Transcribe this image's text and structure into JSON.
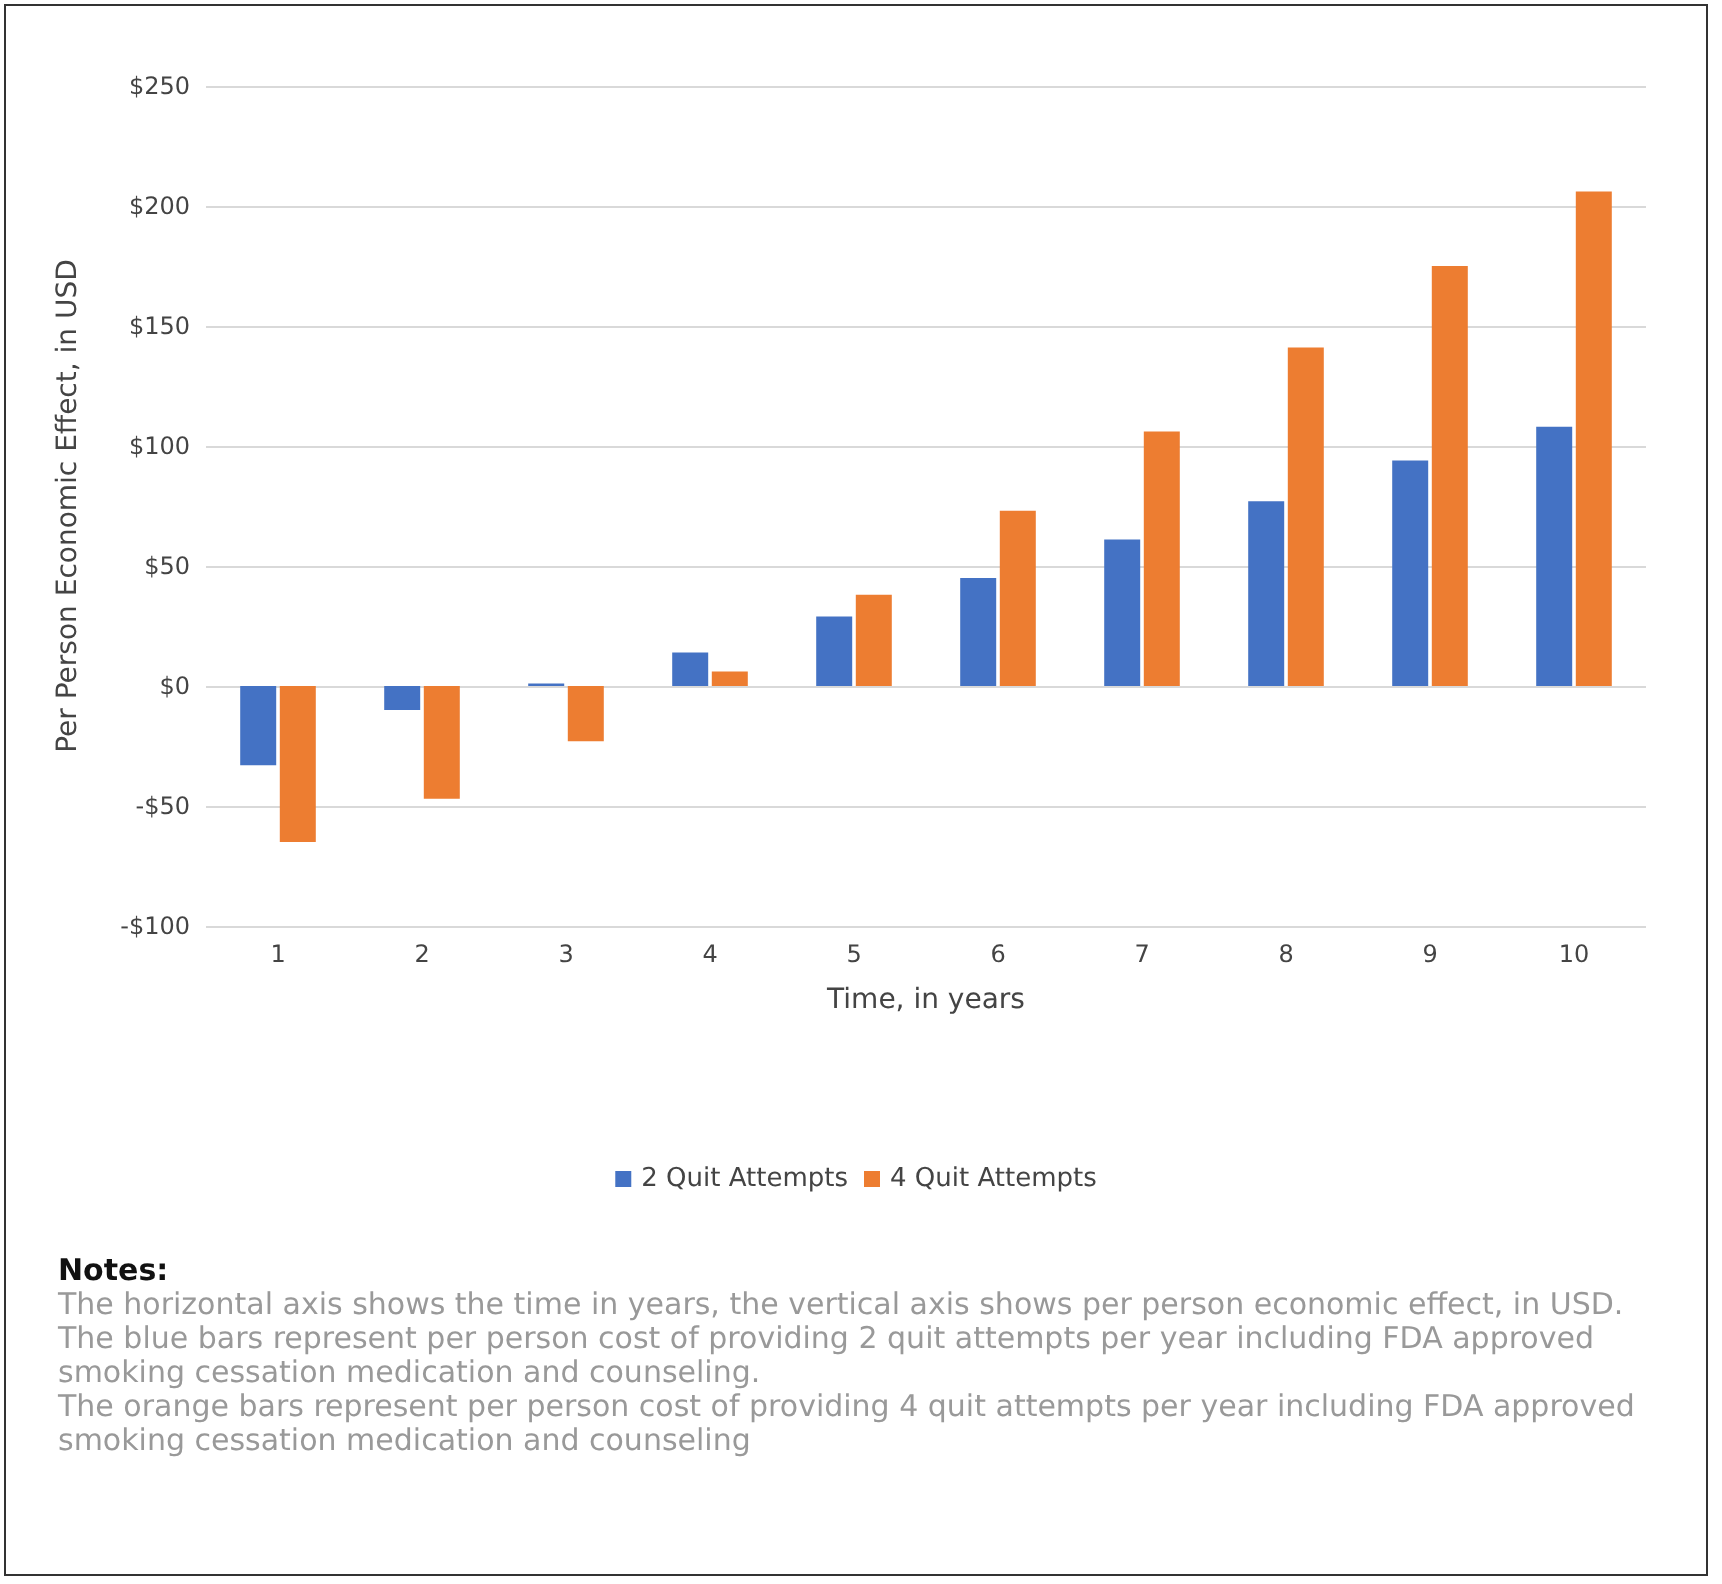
{
  "chart_data": {
    "type": "bar",
    "xlabel": "Time, in years",
    "ylabel": "Per Person Economic Effect, in USD",
    "categories": [
      "1",
      "2",
      "3",
      "4",
      "5",
      "6",
      "7",
      "8",
      "9",
      "10"
    ],
    "series": [
      {
        "name": "2 Quit Attempts",
        "color": "#4472c4",
        "values": [
          -33,
          -10,
          1,
          14,
          29,
          45,
          61,
          77,
          94,
          108
        ]
      },
      {
        "name": "4 Quit Attempts",
        "color": "#ed7d31",
        "values": [
          -65,
          -47,
          -23,
          6,
          38,
          73,
          106,
          141,
          175,
          206
        ]
      }
    ],
    "ylim": [
      -100,
      250
    ],
    "yticks": [
      {
        "value": -100,
        "label": "-$100"
      },
      {
        "value": -50,
        "label": "-$50"
      },
      {
        "value": 0,
        "label": "$0"
      },
      {
        "value": 50,
        "label": "$50"
      },
      {
        "value": 100,
        "label": "$100"
      },
      {
        "value": 150,
        "label": "$150"
      },
      {
        "value": 200,
        "label": "$200"
      },
      {
        "value": 250,
        "label": "$250"
      }
    ],
    "grid": "y",
    "legend": "bottom",
    "annotations": [
      "Notes:",
      "The horizontal axis shows the time in years, the vertical axis shows per person economic effect, in USD.",
      "The blue bars represent per person cost of providing 2 quit attempts per year including FDA approved smoking cessation medication and counseling.",
      "The orange bars represent per person cost of providing 4 quit attempts per year including FDA approved smoking cessation medication and counseling"
    ]
  }
}
